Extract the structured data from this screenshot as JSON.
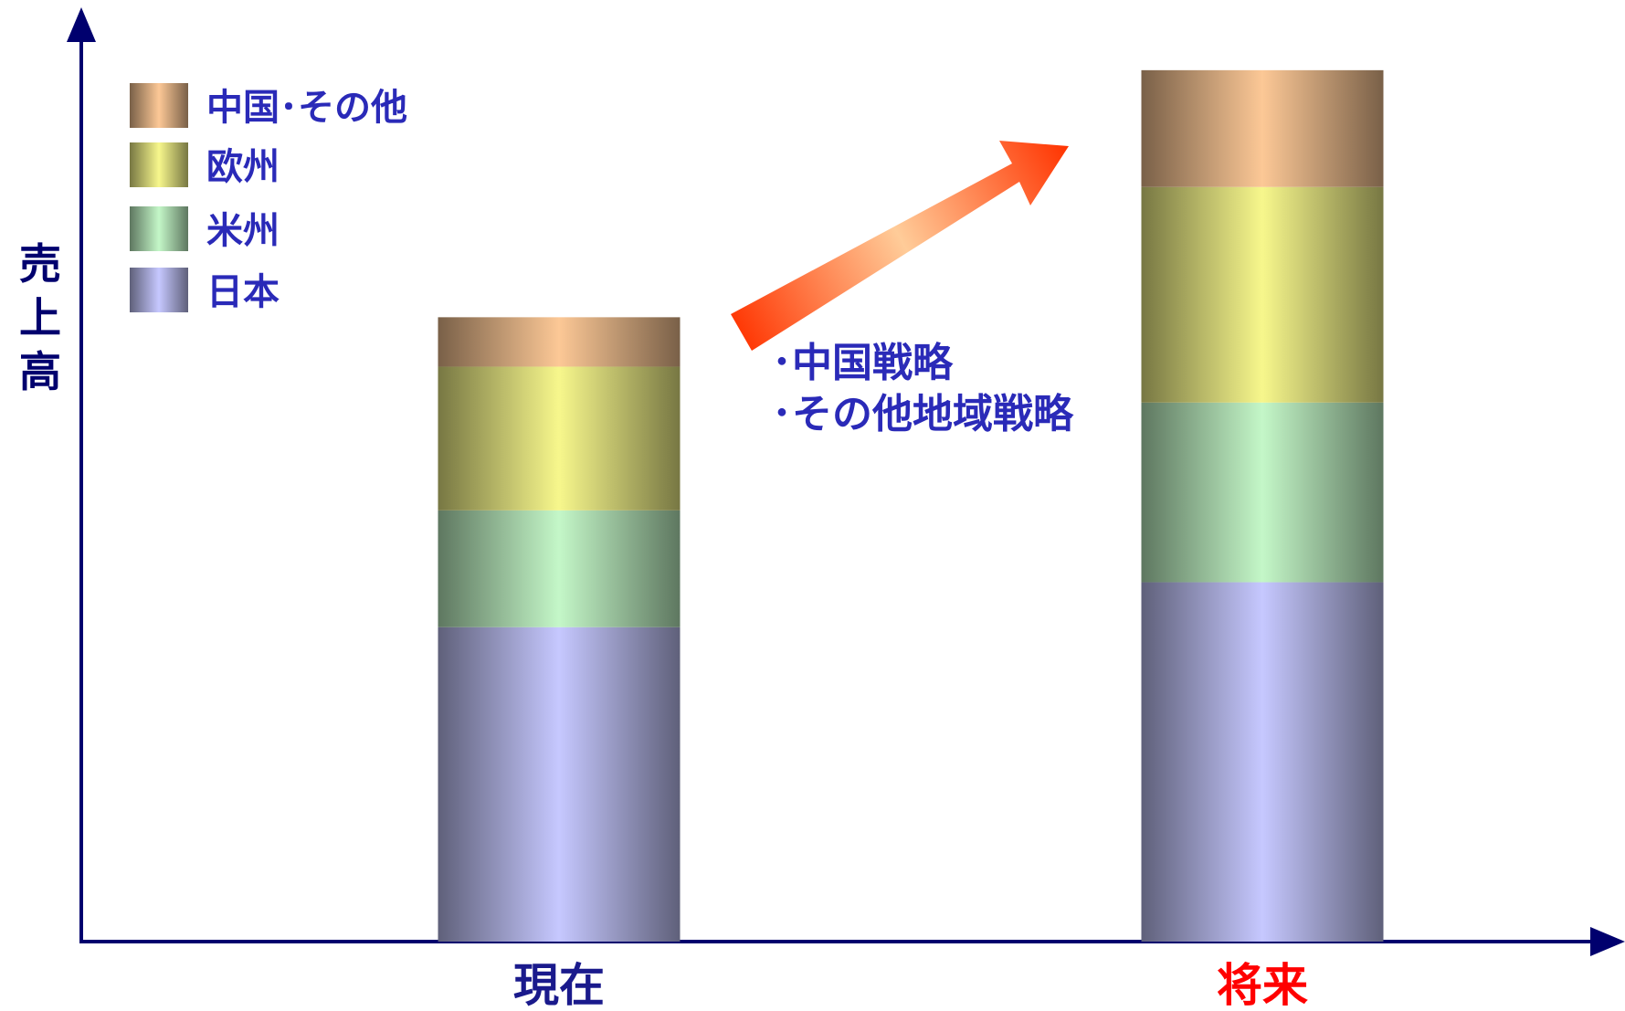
{
  "chart_data": {
    "type": "bar",
    "stacked": true,
    "ylabel": "売上高",
    "categories": [
      "現在",
      "将来"
    ],
    "category_colors": [
      "#1a1a8c",
      "#ff0000"
    ],
    "series": [
      {
        "name": "日本",
        "values": [
          35,
          40
        ],
        "color": "#c6c8ff"
      },
      {
        "name": "米州",
        "values": [
          13,
          20
        ],
        "color": "#c4f7c8"
      },
      {
        "name": "欧州",
        "values": [
          16,
          24
        ],
        "color": "#f7f78c"
      },
      {
        "name": "中国･その他",
        "values": [
          5.5,
          13
        ],
        "color": "#fcc896"
      }
    ],
    "legend_order": [
      "中国･その他",
      "欧州",
      "米州",
      "日本"
    ],
    "legend_position": "top-left",
    "ylim": [
      0,
      104
    ],
    "grid": false,
    "annotation": {
      "lines": [
        "･中国戦略",
        "･その他地域戦略"
      ],
      "arrow": "up-right",
      "arrow_color": "#ff3300"
    },
    "axis_color": "#00006e",
    "text_color": "#2a2ab8"
  }
}
